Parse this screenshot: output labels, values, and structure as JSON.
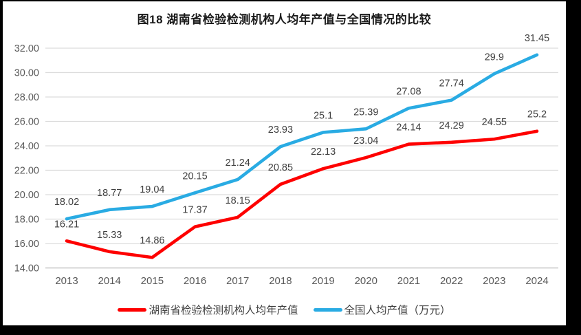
{
  "chart_data": {
    "type": "line",
    "title": "图18 湖南省检验检测机构人均年产值与全国情况的比较",
    "categories": [
      "2013",
      "2014",
      "2015",
      "2016",
      "2017",
      "2018",
      "2019",
      "2020",
      "2021",
      "2022",
      "2023",
      "2024"
    ],
    "series": [
      {
        "name": "湖南省检验检测机构人均年产值",
        "color": "#FE0000",
        "values": [
          16.21,
          15.33,
          14.86,
          17.37,
          18.15,
          20.85,
          22.13,
          23.04,
          24.14,
          24.29,
          24.55,
          25.2
        ]
      },
      {
        "name": "全国人均产值（万元）",
        "color": "#29ABE3",
        "values": [
          18.02,
          18.77,
          19.04,
          20.15,
          21.24,
          23.93,
          25.1,
          25.39,
          27.08,
          27.74,
          29.9,
          31.45
        ]
      }
    ],
    "ylim": [
      14,
      32
    ],
    "ytick_step": 2,
    "ytick_labels": [
      "14.00",
      "16.00",
      "18.00",
      "20.00",
      "22.00",
      "24.00",
      "26.00",
      "28.00",
      "30.00",
      "32.00"
    ],
    "grid": "horizontal",
    "data_labels": true,
    "legend_position": "bottom",
    "colors": {
      "gridline": "#DCDCDC",
      "axis_line": "#C6C6C6",
      "axis_text": "#595959",
      "label_text": "#3F3F3F",
      "frame_border": "#000000",
      "background": "#FFFFFF"
    }
  }
}
